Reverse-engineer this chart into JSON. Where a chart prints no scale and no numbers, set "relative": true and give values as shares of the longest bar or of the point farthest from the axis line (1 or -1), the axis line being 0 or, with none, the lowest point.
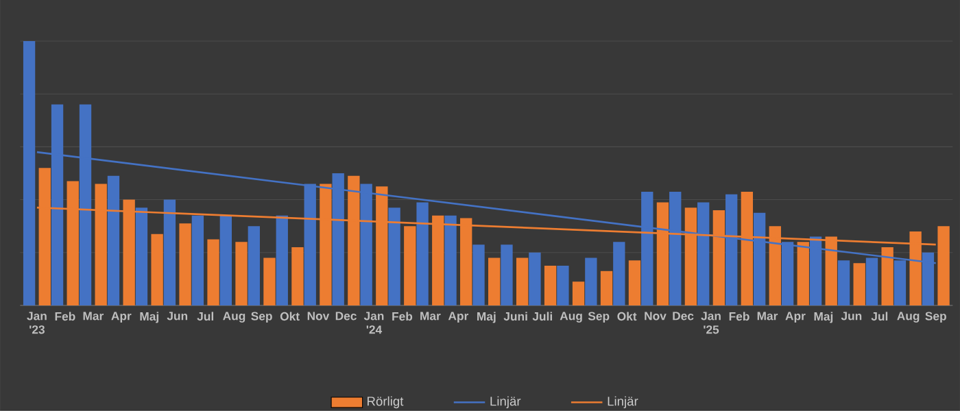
{
  "chart_data": {
    "type": "bar",
    "relative": true,
    "grid": "y",
    "legend": "bottom",
    "marker": "none",
    "categories": [
      "Jan '23",
      "Feb",
      "Mar",
      "Apr",
      "Maj",
      "Jun",
      "Jul",
      "Aug",
      "Sep",
      "Okt",
      "Nov",
      "Dec",
      "Jan '24",
      "Feb",
      "Mar",
      "Apr",
      "Maj",
      "Juni",
      "Juli",
      "Aug",
      "Sep",
      "Okt",
      "Nov",
      "Dec",
      "Jan '25",
      "Feb",
      "Mar",
      "Apr",
      "Maj",
      "Jun",
      "Jul",
      "Aug",
      "Sep"
    ],
    "series": [
      {
        "color": "#4472c4",
        "values": [
          1.0,
          0.76,
          0.76,
          0.49,
          0.37,
          0.4,
          0.34,
          0.34,
          0.3,
          0.34,
          0.46,
          0.5,
          0.46,
          0.37,
          0.39,
          0.34,
          0.23,
          0.23,
          0.2,
          0.15,
          0.18,
          0.24,
          0.43,
          0.43,
          0.39,
          0.42,
          0.35,
          0.24,
          0.26,
          0.17,
          0.18,
          0.17,
          0.2
        ]
      },
      {
        "name": "Rörligt",
        "color": "#ed7d31",
        "values": [
          0.52,
          0.47,
          0.46,
          0.4,
          0.27,
          0.31,
          0.25,
          0.24,
          0.18,
          0.22,
          0.46,
          0.49,
          0.45,
          0.3,
          0.34,
          0.33,
          0.18,
          0.18,
          0.15,
          0.09,
          0.13,
          0.17,
          0.39,
          0.37,
          0.36,
          0.43,
          0.3,
          0.24,
          0.26,
          0.16,
          0.22,
          0.28,
          0.3
        ]
      },
      {
        "type": "line",
        "name": "Linjär",
        "color": "#4472c4",
        "values": [
          0.58,
          null,
          null,
          null,
          null,
          null,
          null,
          null,
          null,
          null,
          null,
          null,
          null,
          null,
          null,
          null,
          null,
          null,
          null,
          null,
          null,
          null,
          null,
          null,
          null,
          null,
          null,
          null,
          null,
          null,
          null,
          null,
          0.16
        ]
      },
      {
        "type": "line",
        "name": "Linjär",
        "color": "#ed7d31",
        "values": [
          0.37,
          null,
          null,
          null,
          null,
          null,
          null,
          null,
          null,
          null,
          null,
          null,
          null,
          null,
          null,
          null,
          null,
          null,
          null,
          null,
          null,
          null,
          null,
          null,
          null,
          null,
          null,
          null,
          null,
          null,
          null,
          null,
          0.23
        ]
      }
    ]
  }
}
